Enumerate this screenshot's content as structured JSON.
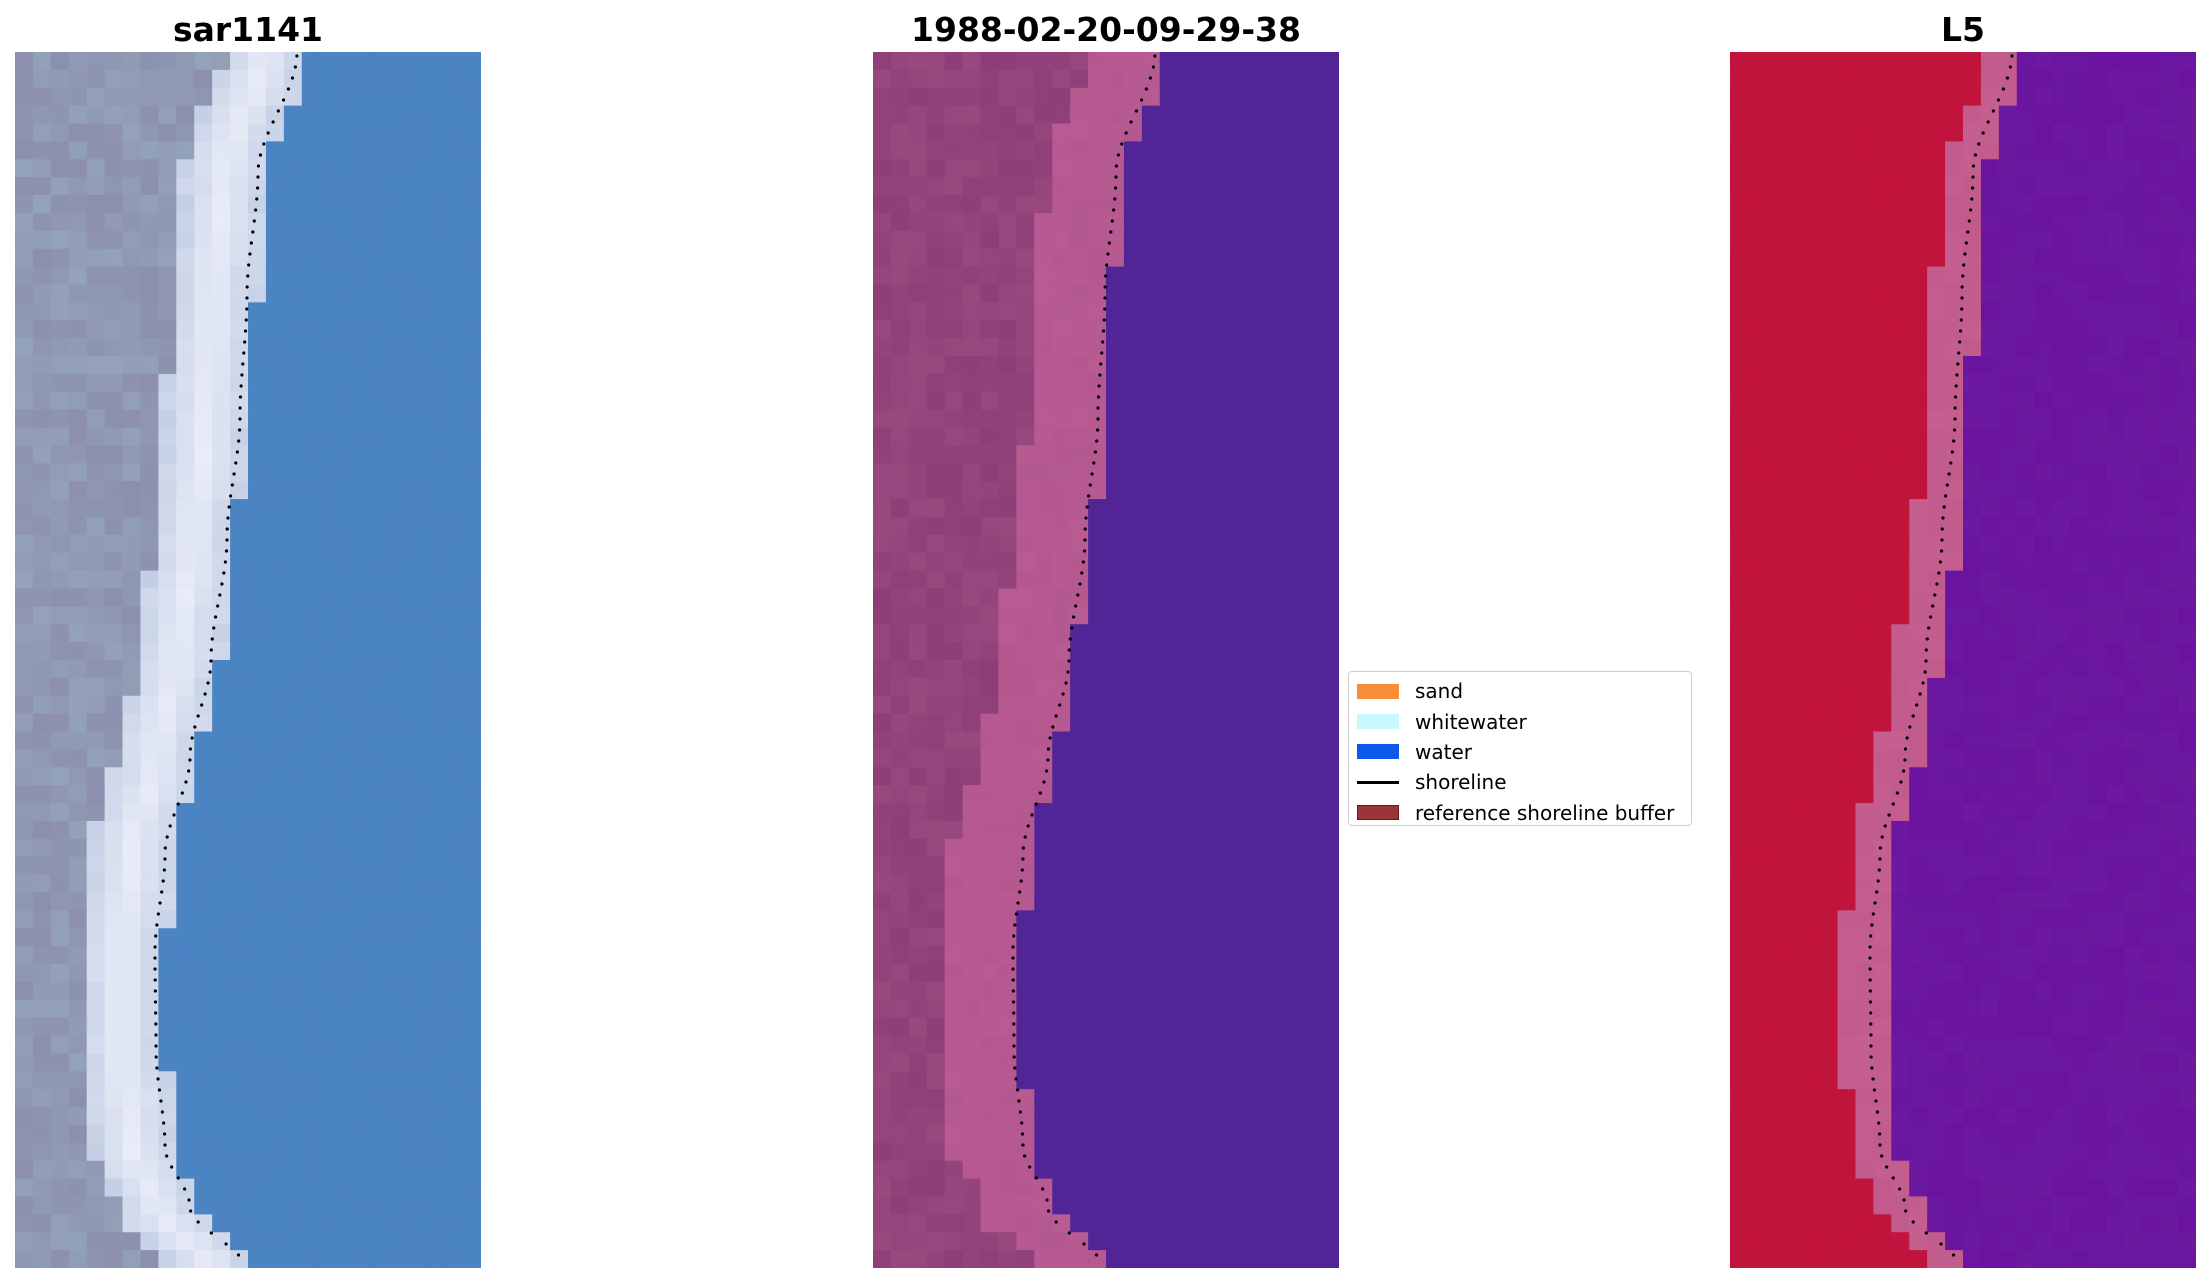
{
  "panels": [
    {
      "title": "sar1141",
      "image_description_name": "rgb-image",
      "palette": {
        "land": "#8c8fad",
        "beach": "#f3f3fa",
        "water": "#4a86c2"
      }
    },
    {
      "title": "1988-02-20-09-29-38",
      "image_description_name": "classified-image",
      "palette": {
        "land": "#8e3f78",
        "beach": "#b95b93",
        "water": "#522596"
      }
    },
    {
      "title": "L5",
      "image_description_name": "index-image",
      "palette": {
        "land": "#c0143c",
        "beach": "#c05a8a",
        "water": "#6a14a0"
      }
    }
  ],
  "legend": {
    "items": [
      {
        "label": "sand",
        "color": "#f98d3b",
        "kind": "patch"
      },
      {
        "label": "whitewater",
        "color": "#c9f9ff",
        "kind": "patch"
      },
      {
        "label": "water",
        "color": "#0a5ae8",
        "kind": "patch"
      },
      {
        "label": "shoreline",
        "color": "#000000",
        "kind": "line"
      },
      {
        "label": "reference shoreline buffer",
        "color": "#9b3439",
        "kind": "patch"
      }
    ]
  },
  "shoreline_style": {
    "color": "#000000",
    "style": "dotted"
  }
}
